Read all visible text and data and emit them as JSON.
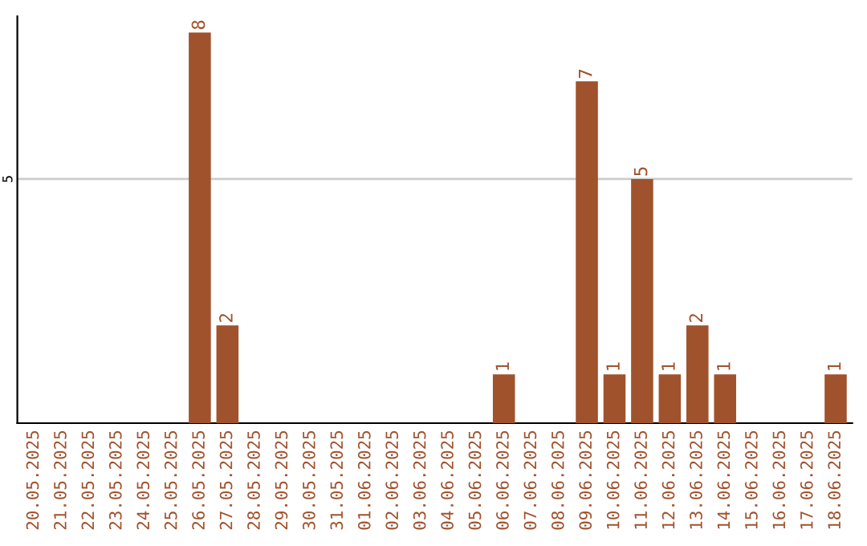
{
  "chart_data": {
    "type": "bar",
    "categories": [
      "20.05.2025",
      "21.05.2025",
      "22.05.2025",
      "23.05.2025",
      "24.05.2025",
      "25.05.2025",
      "26.05.2025",
      "27.05.2025",
      "28.05.2025",
      "29.05.2025",
      "30.05.2025",
      "31.05.2025",
      "01.06.2025",
      "02.06.2025",
      "03.06.2025",
      "04.06.2025",
      "05.06.2025",
      "06.06.2025",
      "07.06.2025",
      "08.06.2025",
      "09.06.2025",
      "10.06.2025",
      "11.06.2025",
      "12.06.2025",
      "13.06.2025",
      "14.06.2025",
      "15.06.2025",
      "16.06.2025",
      "17.06.2025",
      "18.06.2025"
    ],
    "values": [
      0,
      0,
      0,
      0,
      0,
      0,
      8,
      2,
      0,
      0,
      0,
      0,
      0,
      0,
      0,
      0,
      0,
      1,
      0,
      0,
      7,
      1,
      5,
      1,
      2,
      1,
      0,
      0,
      0,
      1
    ],
    "value_labels": [
      null,
      null,
      null,
      null,
      null,
      null,
      "8",
      "2",
      null,
      null,
      null,
      null,
      null,
      null,
      null,
      null,
      null,
      "1",
      null,
      null,
      "7",
      "1",
      "5",
      "1",
      "2",
      "1",
      null,
      null,
      null,
      "1"
    ],
    "color": "#a0522d",
    "ylim": [
      0,
      8.33
    ],
    "yticks": [
      5
    ],
    "grid": "y"
  }
}
